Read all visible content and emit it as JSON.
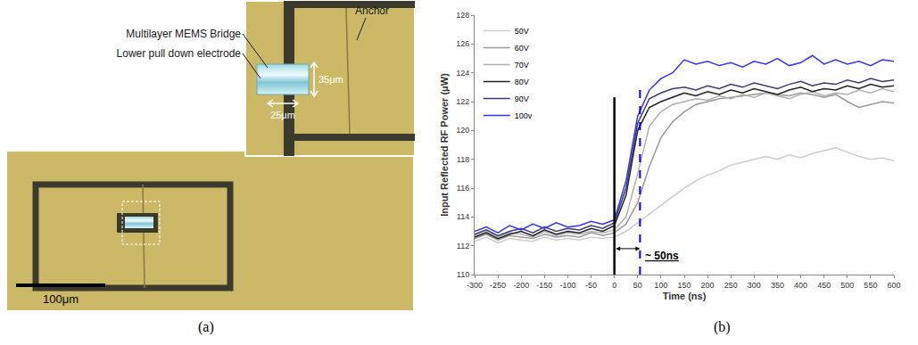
{
  "panel_a": {
    "panel_label": "(a)",
    "labels": [
      "Anchor",
      "Multilayer MEMS Bridge",
      "Lower pull down electrode"
    ],
    "dimensions": [
      "35μm",
      "25μm"
    ],
    "scale_bar": "100μm"
  },
  "chart_data": {
    "type": "line",
    "panel_label": "(b)",
    "x_label": "Time (ns)",
    "y_label": "Input Reflected RF Power (μW)",
    "x": [
      -300,
      -275,
      -250,
      -225,
      -200,
      -175,
      -150,
      -125,
      -100,
      -75,
      -50,
      -25,
      0,
      25,
      50,
      75,
      100,
      125,
      150,
      175,
      200,
      225,
      250,
      275,
      300,
      325,
      350,
      375,
      400,
      425,
      450,
      475,
      500,
      525,
      550,
      575,
      600
    ],
    "series": [
      {
        "name": "50V",
        "color": "#cccccc",
        "line_style": "solid",
        "values": [
          112.3,
          112.6,
          112.2,
          112.5,
          112.4,
          112.3,
          112.6,
          112.4,
          112.5,
          112.4,
          112.6,
          112.5,
          112.6,
          113.0,
          113.6,
          114.2,
          114.8,
          115.4,
          116.0,
          116.5,
          116.9,
          117.2,
          117.6,
          117.8,
          118.0,
          118.2,
          118.0,
          118.3,
          118.1,
          118.4,
          118.6,
          118.8,
          118.5,
          118.2,
          118.0,
          118.1,
          117.9
        ]
      },
      {
        "name": "60V",
        "color": "#999999",
        "line_style": "solid",
        "values": [
          112.5,
          112.8,
          112.4,
          112.7,
          112.6,
          112.5,
          112.8,
          112.6,
          112.7,
          112.6,
          112.9,
          112.7,
          112.9,
          113.5,
          115.0,
          117.5,
          119.5,
          120.6,
          121.3,
          121.8,
          122.0,
          122.2,
          122.3,
          122.4,
          122.5,
          122.6,
          122.5,
          122.4,
          122.6,
          122.5,
          122.3,
          122.5,
          122.0,
          121.6,
          121.8,
          122.0,
          121.9
        ]
      },
      {
        "name": "70V",
        "color": "#b0b0b0",
        "line_style": "solid",
        "values": [
          112.7,
          113.0,
          112.6,
          112.9,
          112.8,
          112.6,
          113.0,
          112.7,
          112.9,
          112.8,
          113.0,
          112.9,
          113.1,
          114.0,
          117.0,
          120.3,
          121.3,
          121.8,
          122.0,
          122.2,
          122.1,
          122.4,
          122.2,
          122.5,
          122.3,
          122.6,
          122.4,
          122.2,
          122.5,
          122.7,
          122.4,
          122.6,
          122.5,
          122.8,
          122.6,
          122.9,
          122.7
        ]
      },
      {
        "name": "80V",
        "color": "#222222",
        "line_style": "solid",
        "values": [
          112.6,
          112.9,
          112.5,
          112.8,
          113.0,
          112.7,
          113.1,
          112.8,
          113.0,
          112.9,
          113.2,
          113.0,
          113.4,
          115.5,
          120.0,
          121.6,
          122.0,
          122.3,
          122.6,
          122.4,
          122.7,
          122.5,
          122.8,
          122.6,
          122.9,
          122.7,
          122.5,
          122.8,
          123.0,
          122.7,
          122.9,
          122.8,
          123.1,
          122.9,
          123.2,
          123.0,
          123.1
        ]
      },
      {
        "name": "90V",
        "color": "#3a3a7a",
        "line_style": "solid",
        "values": [
          112.8,
          113.1,
          112.7,
          113.0,
          113.2,
          112.9,
          113.3,
          113.0,
          113.2,
          113.1,
          113.4,
          113.2,
          113.6,
          116.0,
          120.5,
          122.2,
          122.6,
          122.9,
          123.0,
          122.8,
          123.1,
          122.9,
          123.2,
          123.0,
          123.3,
          123.1,
          122.9,
          123.2,
          123.4,
          123.1,
          123.3,
          123.2,
          123.5,
          123.3,
          123.6,
          123.4,
          123.5
        ]
      },
      {
        "name": "100v",
        "color": "#3333ff",
        "line_style": "solid",
        "values": [
          113.0,
          113.3,
          112.9,
          113.4,
          113.1,
          113.5,
          113.2,
          113.6,
          113.3,
          113.4,
          113.7,
          113.5,
          113.8,
          116.5,
          121.0,
          122.8,
          123.6,
          124.0,
          124.9,
          124.6,
          124.8,
          124.5,
          124.7,
          124.4,
          124.8,
          124.6,
          125.0,
          124.5,
          124.7,
          125.2,
          124.6,
          124.9,
          124.6,
          124.8,
          124.5,
          124.9,
          124.8
        ]
      }
    ],
    "xlim": [
      -300,
      600
    ],
    "xticks": [
      -300,
      -250,
      -200,
      -150,
      -100,
      -50,
      0,
      50,
      100,
      150,
      200,
      250,
      300,
      350,
      400,
      450,
      500,
      550,
      600
    ],
    "ylim": [
      110,
      128
    ],
    "yticks": [
      110,
      112,
      114,
      116,
      118,
      120,
      122,
      124,
      126,
      128
    ],
    "grid": false,
    "legend": "top left",
    "vertical_lines": [
      {
        "x": 0,
        "y": [
          110,
          122.3
        ],
        "color": "#000000",
        "line_style": "solid"
      },
      {
        "x": 55,
        "y": [
          110,
          123.2
        ],
        "color": "#0000ff",
        "line_style": "dashed"
      }
    ],
    "span": {
      "x": [
        0,
        55
      ],
      "y": 111.8
    },
    "annotations": [
      {
        "text": "~ 50ns",
        "x": 62,
        "y": 111.3
      }
    ]
  }
}
